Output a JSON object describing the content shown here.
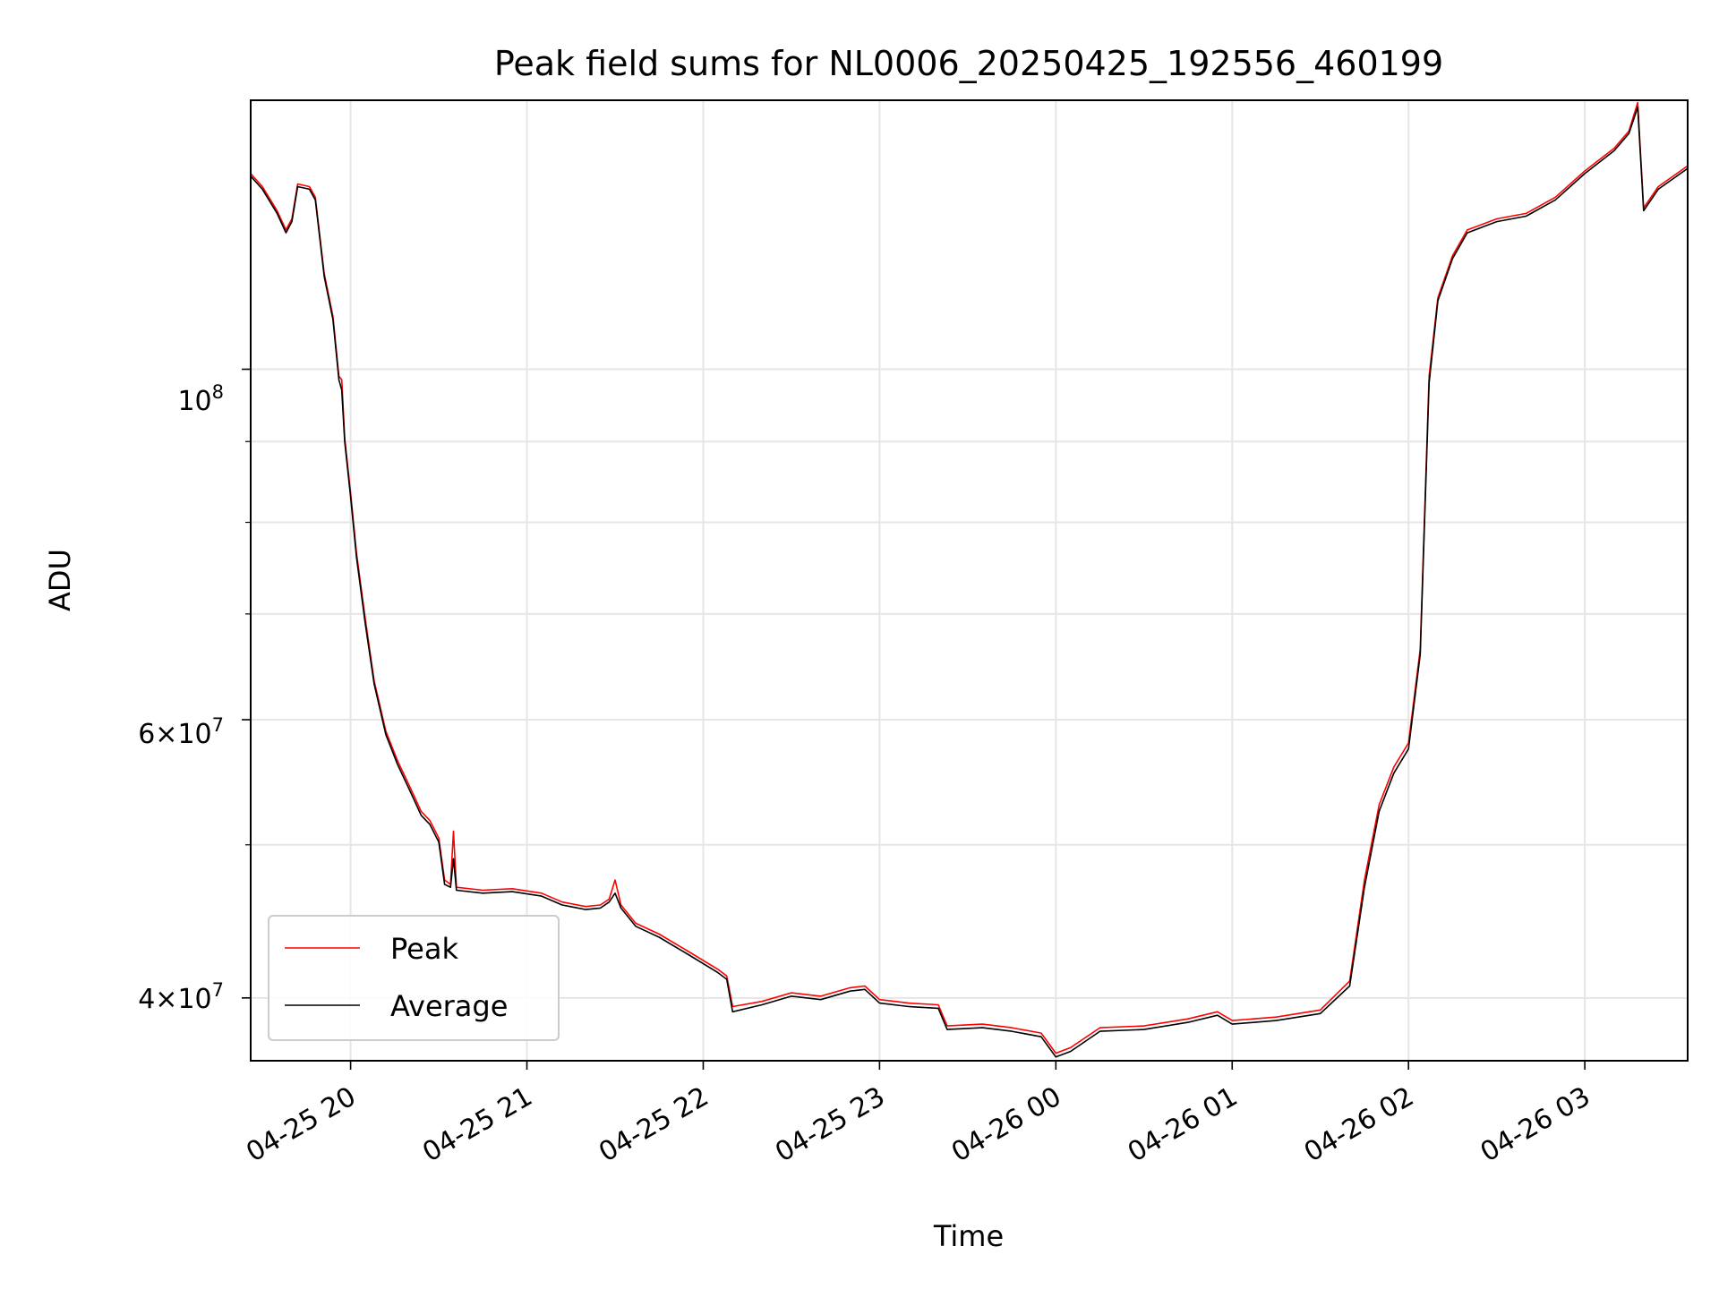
{
  "chart_data": {
    "type": "line",
    "title": "Peak field sums for NL0006_20250425_192556_460199",
    "xlabel": "Time",
    "ylabel": "ADU",
    "yscale": "log",
    "xlim": [
      "2025-04-25 19:26",
      "2025-04-26 03:35"
    ],
    "ylim": [
      36500000,
      148000000
    ],
    "grid": true,
    "legend_position": "lower-left",
    "x_ticks": [
      "04-25 20",
      "04-25 21",
      "04-25 22",
      "04-25 23",
      "04-26 00",
      "04-26 01",
      "04-26 02",
      "04-26 03"
    ],
    "y_ticks": [
      "$10^8$",
      "$6\\times10^7$",
      "$4\\times10^7$"
    ],
    "y_tick_labels": {
      "major": {
        "base": "10",
        "exp": "8"
      },
      "six": {
        "coef": "6",
        "times": "×",
        "base": "10",
        "exp": "7"
      },
      "four": {
        "coef": "4",
        "times": "×",
        "base": "10",
        "exp": "7"
      }
    },
    "series": [
      {
        "name": "Peak",
        "color": "#ff0000",
        "points": [
          [
            "2025-04-25 19:26",
            133000000
          ],
          [
            "2025-04-25 19:30",
            130500000
          ],
          [
            "2025-04-25 19:35",
            126000000
          ],
          [
            "2025-04-25 19:38",
            122500000
          ],
          [
            "2025-04-25 19:40",
            124500000
          ],
          [
            "2025-04-25 19:42",
            131000000
          ],
          [
            "2025-04-25 19:46",
            130500000
          ],
          [
            "2025-04-25 19:48",
            128500000
          ],
          [
            "2025-04-25 19:51",
            115000000
          ],
          [
            "2025-04-25 19:54",
            108000000
          ],
          [
            "2025-04-25 19:56",
            99000000
          ],
          [
            "2025-04-25 19:57",
            98500000
          ],
          [
            "2025-04-25 19:58",
            90500000
          ],
          [
            "2025-04-25 20:00",
            83500000
          ],
          [
            "2025-04-25 20:02",
            76500000
          ],
          [
            "2025-04-25 20:05",
            69500000
          ],
          [
            "2025-04-25 20:08",
            63500000
          ],
          [
            "2025-04-25 20:12",
            59000000
          ],
          [
            "2025-04-25 20:16",
            56500000
          ],
          [
            "2025-04-25 20:20",
            54500000
          ],
          [
            "2025-04-25 20:24",
            52500000
          ],
          [
            "2025-04-25 20:27",
            51800000
          ],
          [
            "2025-04-25 20:30",
            50500000
          ],
          [
            "2025-04-25 20:32",
            47500000
          ],
          [
            "2025-04-25 20:34",
            47200000
          ],
          [
            "2025-04-25 20:35",
            51000000
          ],
          [
            "2025-04-25 20:36",
            47000000
          ],
          [
            "2025-04-25 20:45",
            46800000
          ],
          [
            "2025-04-25 20:55",
            46900000
          ],
          [
            "2025-04-25 21:05",
            46600000
          ],
          [
            "2025-04-25 21:12",
            46000000
          ],
          [
            "2025-04-25 21:20",
            45700000
          ],
          [
            "2025-04-25 21:25",
            45800000
          ],
          [
            "2025-04-25 21:28",
            46200000
          ],
          [
            "2025-04-25 21:30",
            47500000
          ],
          [
            "2025-04-25 21:32",
            45800000
          ],
          [
            "2025-04-25 21:37",
            44600000
          ],
          [
            "2025-04-25 21:45",
            43900000
          ],
          [
            "2025-04-25 21:55",
            42800000
          ],
          [
            "2025-04-25 22:05",
            41700000
          ],
          [
            "2025-04-25 22:08",
            41300000
          ],
          [
            "2025-04-25 22:10",
            39500000
          ],
          [
            "2025-04-25 22:20",
            39800000
          ],
          [
            "2025-04-25 22:30",
            40300000
          ],
          [
            "2025-04-25 22:40",
            40100000
          ],
          [
            "2025-04-25 22:50",
            40600000
          ],
          [
            "2025-04-25 22:55",
            40700000
          ],
          [
            "2025-04-25 23:00",
            39900000
          ],
          [
            "2025-04-25 23:10",
            39700000
          ],
          [
            "2025-04-25 23:20",
            39600000
          ],
          [
            "2025-04-25 23:23",
            38400000
          ],
          [
            "2025-04-25 23:35",
            38500000
          ],
          [
            "2025-04-25 23:45",
            38300000
          ],
          [
            "2025-04-25 23:55",
            38000000
          ],
          [
            "2025-04-26 00:00",
            36900000
          ],
          [
            "2025-04-26 00:05",
            37200000
          ],
          [
            "2025-04-26 00:15",
            38300000
          ],
          [
            "2025-04-26 00:30",
            38400000
          ],
          [
            "2025-04-26 00:45",
            38800000
          ],
          [
            "2025-04-26 00:55",
            39200000
          ],
          [
            "2025-04-26 01:00",
            38700000
          ],
          [
            "2025-04-26 01:15",
            38900000
          ],
          [
            "2025-04-26 01:30",
            39300000
          ],
          [
            "2025-04-26 01:40",
            41000000
          ],
          [
            "2025-04-26 01:45",
            47500000
          ],
          [
            "2025-04-26 01:50",
            53000000
          ],
          [
            "2025-04-26 01:55",
            56000000
          ],
          [
            "2025-04-26 02:00",
            58000000
          ],
          [
            "2025-04-26 02:04",
            66500000
          ],
          [
            "2025-04-26 02:07",
            99000000
          ],
          [
            "2025-04-26 02:10",
            111000000
          ],
          [
            "2025-04-26 02:15",
            118000000
          ],
          [
            "2025-04-26 02:20",
            122500000
          ],
          [
            "2025-04-26 02:30",
            124500000
          ],
          [
            "2025-04-26 02:40",
            125500000
          ],
          [
            "2025-04-26 02:50",
            128500000
          ],
          [
            "2025-04-26 03:00",
            133500000
          ],
          [
            "2025-04-26 03:10",
            138000000
          ],
          [
            "2025-04-26 03:15",
            141500000
          ],
          [
            "2025-04-26 03:18",
            147500000
          ],
          [
            "2025-04-26 03:20",
            126500000
          ],
          [
            "2025-04-26 03:25",
            130500000
          ],
          [
            "2025-04-26 03:35",
            134500000
          ]
        ]
      },
      {
        "name": "Average",
        "color": "#000000",
        "points": [
          [
            "2025-04-25 19:26",
            132500000
          ],
          [
            "2025-04-25 19:30",
            130000000
          ],
          [
            "2025-04-25 19:35",
            125500000
          ],
          [
            "2025-04-25 19:38",
            122000000
          ],
          [
            "2025-04-25 19:40",
            124000000
          ],
          [
            "2025-04-25 19:42",
            130500000
          ],
          [
            "2025-04-25 19:46",
            130000000
          ],
          [
            "2025-04-25 19:48",
            128000000
          ],
          [
            "2025-04-25 19:51",
            114500000
          ],
          [
            "2025-04-25 19:54",
            107500000
          ],
          [
            "2025-04-25 19:56",
            98500000
          ],
          [
            "2025-04-25 19:57",
            97000000
          ],
          [
            "2025-04-25 19:58",
            90000000
          ],
          [
            "2025-04-25 20:00",
            83000000
          ],
          [
            "2025-04-25 20:02",
            76000000
          ],
          [
            "2025-04-25 20:05",
            69000000
          ],
          [
            "2025-04-25 20:08",
            63200000
          ],
          [
            "2025-04-25 20:12",
            58700000
          ],
          [
            "2025-04-25 20:16",
            56200000
          ],
          [
            "2025-04-25 20:20",
            54200000
          ],
          [
            "2025-04-25 20:24",
            52200000
          ],
          [
            "2025-04-25 20:27",
            51500000
          ],
          [
            "2025-04-25 20:30",
            50200000
          ],
          [
            "2025-04-25 20:32",
            47200000
          ],
          [
            "2025-04-25 20:34",
            47000000
          ],
          [
            "2025-04-25 20:35",
            49000000
          ],
          [
            "2025-04-25 20:36",
            46800000
          ],
          [
            "2025-04-25 20:45",
            46600000
          ],
          [
            "2025-04-25 20:55",
            46700000
          ],
          [
            "2025-04-25 21:05",
            46400000
          ],
          [
            "2025-04-25 21:12",
            45800000
          ],
          [
            "2025-04-25 21:20",
            45500000
          ],
          [
            "2025-04-25 21:25",
            45600000
          ],
          [
            "2025-04-25 21:28",
            46000000
          ],
          [
            "2025-04-25 21:30",
            46600000
          ],
          [
            "2025-04-25 21:32",
            45600000
          ],
          [
            "2025-04-25 21:37",
            44400000
          ],
          [
            "2025-04-25 21:45",
            43700000
          ],
          [
            "2025-04-25 21:55",
            42600000
          ],
          [
            "2025-04-25 22:05",
            41500000
          ],
          [
            "2025-04-25 22:08",
            41100000
          ],
          [
            "2025-04-25 22:10",
            39200000
          ],
          [
            "2025-04-25 22:20",
            39600000
          ],
          [
            "2025-04-25 22:30",
            40100000
          ],
          [
            "2025-04-25 22:40",
            39900000
          ],
          [
            "2025-04-25 22:50",
            40400000
          ],
          [
            "2025-04-25 22:55",
            40500000
          ],
          [
            "2025-04-25 23:00",
            39700000
          ],
          [
            "2025-04-25 23:10",
            39500000
          ],
          [
            "2025-04-25 23:20",
            39400000
          ],
          [
            "2025-04-25 23:23",
            38200000
          ],
          [
            "2025-04-25 23:35",
            38300000
          ],
          [
            "2025-04-25 23:45",
            38100000
          ],
          [
            "2025-04-25 23:55",
            37800000
          ],
          [
            "2025-04-26 00:00",
            36700000
          ],
          [
            "2025-04-26 00:05",
            37000000
          ],
          [
            "2025-04-26 00:15",
            38100000
          ],
          [
            "2025-04-26 00:30",
            38200000
          ],
          [
            "2025-04-26 00:45",
            38600000
          ],
          [
            "2025-04-26 00:55",
            39000000
          ],
          [
            "2025-04-26 01:00",
            38500000
          ],
          [
            "2025-04-26 01:15",
            38700000
          ],
          [
            "2025-04-26 01:30",
            39100000
          ],
          [
            "2025-04-26 01:40",
            40700000
          ],
          [
            "2025-04-26 01:45",
            47000000
          ],
          [
            "2025-04-26 01:50",
            52500000
          ],
          [
            "2025-04-26 01:55",
            55500000
          ],
          [
            "2025-04-26 02:00",
            57500000
          ],
          [
            "2025-04-26 02:04",
            66000000
          ],
          [
            "2025-04-26 02:07",
            98000000
          ],
          [
            "2025-04-26 02:10",
            110500000
          ],
          [
            "2025-04-26 02:15",
            117500000
          ],
          [
            "2025-04-26 02:20",
            122000000
          ],
          [
            "2025-04-26 02:30",
            124000000
          ],
          [
            "2025-04-26 02:40",
            125000000
          ],
          [
            "2025-04-26 02:50",
            128000000
          ],
          [
            "2025-04-26 03:00",
            133000000
          ],
          [
            "2025-04-26 03:10",
            137500000
          ],
          [
            "2025-04-26 03:15",
            141000000
          ],
          [
            "2025-04-26 03:18",
            146500000
          ],
          [
            "2025-04-26 03:20",
            126000000
          ],
          [
            "2025-04-26 03:25",
            130000000
          ],
          [
            "2025-04-26 03:35",
            134000000
          ]
        ]
      }
    ]
  }
}
